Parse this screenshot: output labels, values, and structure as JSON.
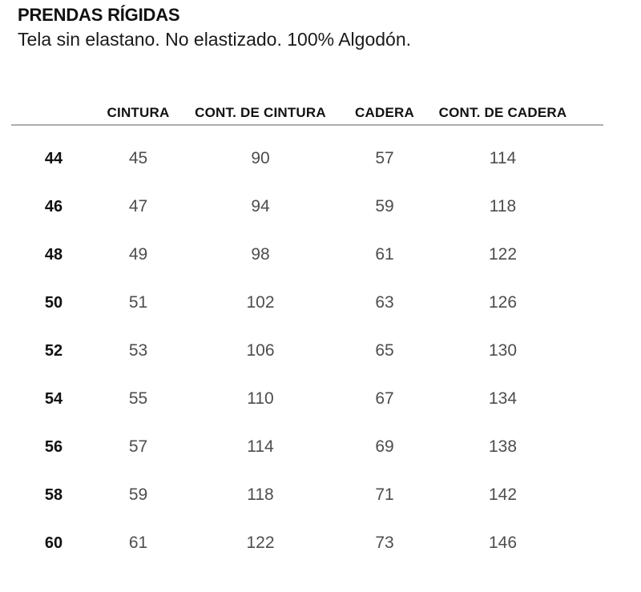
{
  "page": {
    "title": "PRENDAS RÍGIDAS",
    "subtitle": "Tela sin elastano. No elastizado. 100% Algodón."
  },
  "table": {
    "columns": [
      "CINTURA",
      "CONT. DE CINTURA",
      "CADERA",
      "CONT. DE CADERA"
    ],
    "rows": [
      {
        "size": "44",
        "cintura": "45",
        "cont_cintura": "90",
        "cadera": "57",
        "cont_cadera": "114"
      },
      {
        "size": "46",
        "cintura": "47",
        "cont_cintura": "94",
        "cadera": "59",
        "cont_cadera": "118"
      },
      {
        "size": "48",
        "cintura": "49",
        "cont_cintura": "98",
        "cadera": "61",
        "cont_cadera": "122"
      },
      {
        "size": "50",
        "cintura": "51",
        "cont_cintura": "102",
        "cadera": "63",
        "cont_cadera": "126"
      },
      {
        "size": "52",
        "cintura": "53",
        "cont_cintura": "106",
        "cadera": "65",
        "cont_cadera": "130"
      },
      {
        "size": "54",
        "cintura": "55",
        "cont_cintura": "110",
        "cadera": "67",
        "cont_cadera": "134"
      },
      {
        "size": "56",
        "cintura": "57",
        "cont_cintura": "114",
        "cadera": "69",
        "cont_cadera": "138"
      },
      {
        "size": "58",
        "cintura": "59",
        "cont_cintura": "118",
        "cadera": "71",
        "cont_cadera": "142"
      },
      {
        "size": "60",
        "cintura": "61",
        "cont_cintura": "122",
        "cadera": "73",
        "cont_cadera": "146"
      }
    ]
  },
  "colors": {
    "text_primary": "#111111",
    "text_values": "#4d4d4d",
    "divider": "#adadad",
    "background": "#ffffff"
  }
}
